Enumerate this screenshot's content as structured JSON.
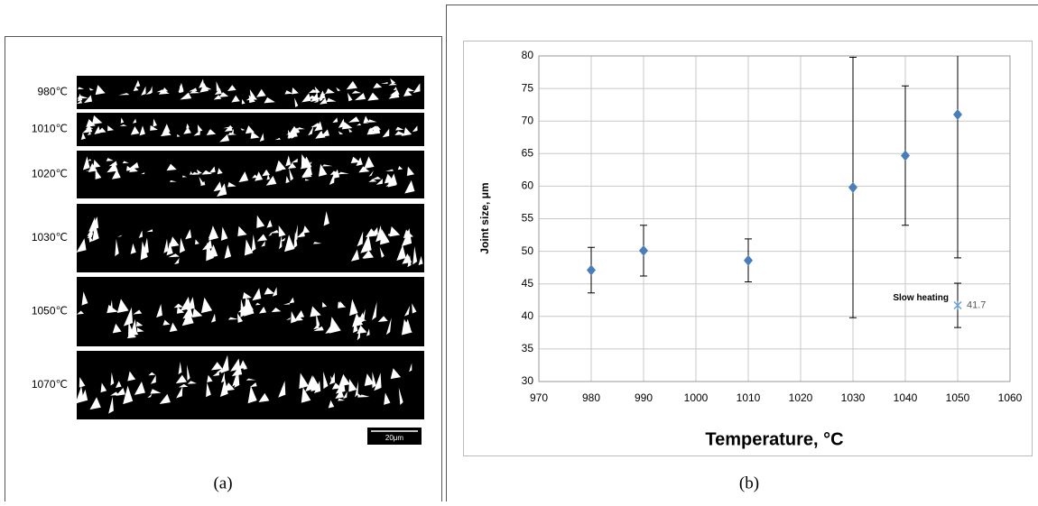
{
  "panel_a": {
    "labels": [
      "980℃",
      "1010℃",
      "1020℃",
      "1030℃",
      "1050℃",
      "1070℃"
    ],
    "scale_bar": "20μm",
    "caption": "(a)"
  },
  "panel_b": {
    "caption": "(b)"
  },
  "chart_data": {
    "type": "scatter",
    "x_label": "Temperature, °C",
    "y_label": "Joint size, μm",
    "xlim": [
      970,
      1060
    ],
    "xticks": [
      970,
      980,
      990,
      1000,
      1010,
      1020,
      1030,
      1040,
      1050,
      1060
    ],
    "ylim": [
      30,
      80
    ],
    "yticks": [
      30,
      35,
      40,
      45,
      50,
      55,
      60,
      65,
      70,
      75,
      80
    ],
    "grid": true,
    "series": [
      {
        "color": "#4a7ebb",
        "marker": "diamond",
        "x": [
          980,
          990,
          1010,
          1030,
          1040,
          1050
        ],
        "values": [
          47.1,
          50.1,
          48.6,
          59.8,
          64.7,
          71.0
        ],
        "errors": [
          3.5,
          3.9,
          3.3,
          20,
          10.7,
          22
        ]
      },
      {
        "name": "Slow heating",
        "color": "#6a9fd4",
        "marker": "asterisk",
        "x": [
          1050
        ],
        "values": [
          41.7
        ],
        "errors": [
          3.4
        ]
      }
    ]
  }
}
